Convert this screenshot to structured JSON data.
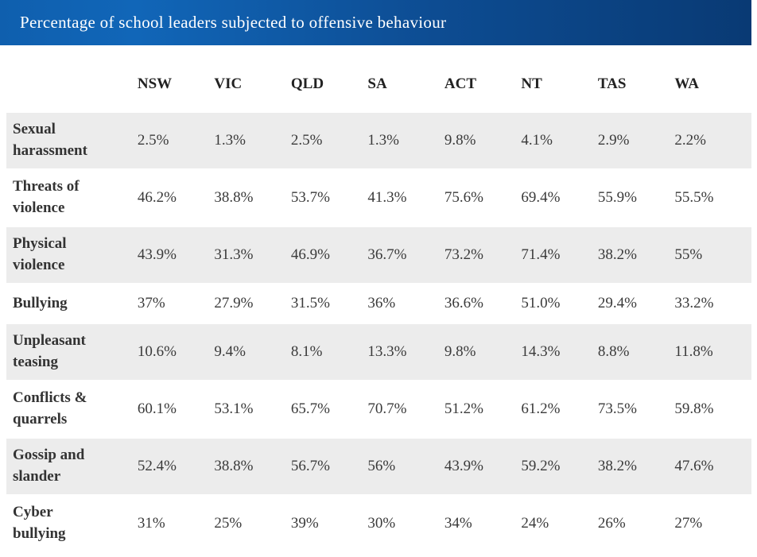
{
  "title_bar": {
    "title": "Percentage of school leaders subjected to offensive behaviour",
    "background_left": "#1166b8",
    "background_right": "#093a74",
    "text_color": "#ffffff"
  },
  "table": {
    "columns": [
      "NSW",
      "VIC",
      "QLD",
      "SA",
      "ACT",
      "NT",
      "TAS",
      "WA"
    ],
    "rows": [
      {
        "label": "Sexual harassment",
        "values": [
          "2.5%",
          "1.3%",
          "2.5%",
          "1.3%",
          "9.8%",
          "4.1%",
          "2.9%",
          "2.2%"
        ]
      },
      {
        "label": "Threats of violence",
        "values": [
          "46.2%",
          "38.8%",
          "53.7%",
          "41.3%",
          "75.6%",
          "69.4%",
          "55.9%",
          "55.5%"
        ]
      },
      {
        "label": "Physical violence",
        "values": [
          "43.9%",
          "31.3%",
          "46.9%",
          "36.7%",
          "73.2%",
          "71.4%",
          "38.2%",
          "55%"
        ]
      },
      {
        "label": "Bullying",
        "values": [
          "37%",
          "27.9%",
          "31.5%",
          "36%",
          "36.6%",
          "51.0%",
          "29.4%",
          "33.2%"
        ]
      },
      {
        "label": "Unpleasant teasing",
        "values": [
          "10.6%",
          "9.4%",
          "8.1%",
          "13.3%",
          "9.8%",
          "14.3%",
          "8.8%",
          "11.8%"
        ]
      },
      {
        "label": "Conflicts & quarrels",
        "values": [
          "60.1%",
          "53.1%",
          "65.7%",
          "70.7%",
          "51.2%",
          "61.2%",
          "73.5%",
          "59.8%"
        ]
      },
      {
        "label": "Gossip and slander",
        "values": [
          "52.4%",
          "38.8%",
          "56.7%",
          "56%",
          "43.9%",
          "59.2%",
          "38.2%",
          "47.6%"
        ]
      },
      {
        "label": "Cyber bullying",
        "values": [
          "31%",
          "25%",
          "39%",
          "30%",
          "34%",
          "24%",
          "26%",
          "27%"
        ]
      }
    ],
    "stripe_color": "#ececec",
    "text_color": "#333333"
  },
  "chart_data": {
    "type": "table",
    "title": "Percentage of school leaders subjected to offensive behaviour",
    "categories": [
      "NSW",
      "VIC",
      "QLD",
      "SA",
      "ACT",
      "NT",
      "TAS",
      "WA"
    ],
    "series": [
      {
        "name": "Sexual harassment",
        "values": [
          2.5,
          1.3,
          2.5,
          1.3,
          9.8,
          4.1,
          2.9,
          2.2
        ]
      },
      {
        "name": "Threats of violence",
        "values": [
          46.2,
          38.8,
          53.7,
          41.3,
          75.6,
          69.4,
          55.9,
          55.5
        ]
      },
      {
        "name": "Physical violence",
        "values": [
          43.9,
          31.3,
          46.9,
          36.7,
          73.2,
          71.4,
          38.2,
          55
        ]
      },
      {
        "name": "Bullying",
        "values": [
          37,
          27.9,
          31.5,
          36,
          36.6,
          51.0,
          29.4,
          33.2
        ]
      },
      {
        "name": "Unpleasant teasing",
        "values": [
          10.6,
          9.4,
          8.1,
          13.3,
          9.8,
          14.3,
          8.8,
          11.8
        ]
      },
      {
        "name": "Conflicts & quarrels",
        "values": [
          60.1,
          53.1,
          65.7,
          70.7,
          51.2,
          61.2,
          73.5,
          59.8
        ]
      },
      {
        "name": "Gossip and slander",
        "values": [
          52.4,
          38.8,
          56.7,
          56,
          43.9,
          59.2,
          38.2,
          47.6
        ]
      },
      {
        "name": "Cyber bullying",
        "values": [
          31,
          25,
          39,
          30,
          34,
          24,
          26,
          27
        ]
      }
    ],
    "unit": "%"
  }
}
